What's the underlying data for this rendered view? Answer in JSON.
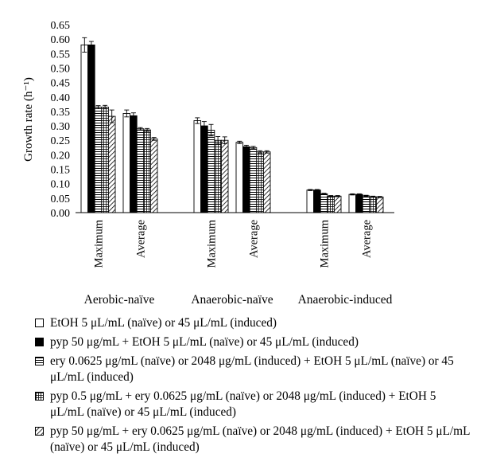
{
  "chart_data": {
    "type": "bar",
    "ylabel": "Growth rate (h⁻¹)",
    "ylim": [
      0,
      0.65
    ],
    "yticks": [
      "0.00",
      "0.05",
      "0.10",
      "0.15",
      "0.20",
      "0.25",
      "0.30",
      "0.35",
      "0.40",
      "0.45",
      "0.50",
      "0.55",
      "0.60",
      "0.65"
    ],
    "grid": false,
    "legend_position": "bottom",
    "groups": [
      {
        "name": "Aerobic-naïve",
        "categories": [
          {
            "label": "Maximum",
            "values": [
              0.58,
              0.58,
              0.365,
              0.365,
              0.333
            ],
            "errors": [
              0.025,
              0.012,
              0.005,
              0.006,
              0.022
            ]
          },
          {
            "label": "Average",
            "values": [
              0.343,
              0.335,
              0.29,
              0.286,
              0.255
            ],
            "errors": [
              0.012,
              0.01,
              0.004,
              0.005,
              0.005
            ]
          }
        ]
      },
      {
        "name": "Anaerobic-naïve",
        "categories": [
          {
            "label": "Maximum",
            "values": [
              0.318,
              0.3,
              0.285,
              0.25,
              0.25
            ],
            "errors": [
              0.01,
              0.015,
              0.02,
              0.013,
              0.012
            ]
          },
          {
            "label": "Average",
            "values": [
              0.243,
              0.228,
              0.225,
              0.21,
              0.21
            ],
            "errors": [
              0.004,
              0.005,
              0.004,
              0.004,
              0.004
            ]
          }
        ]
      },
      {
        "name": "Anaerobic-induced",
        "categories": [
          {
            "label": "Maximum",
            "values": [
              0.078,
              0.078,
              0.065,
              0.057,
              0.057
            ],
            "errors": [
              0.002,
              0.002,
              0.002,
              0.002,
              0.002
            ]
          },
          {
            "label": "Average",
            "values": [
              0.063,
              0.063,
              0.058,
              0.055,
              0.054
            ],
            "errors": [
              0.002,
              0.002,
              0.002,
              0.002,
              0.002
            ]
          }
        ]
      }
    ],
    "series": [
      {
        "fill": "white"
      },
      {
        "fill": "black"
      },
      {
        "fill": "horizontal-hatch"
      },
      {
        "fill": "grid-hatch"
      },
      {
        "fill": "diagonal-hatch"
      }
    ]
  },
  "legend": [
    {
      "text": "EtOH 5 μL/mL (naïve) or 45 μL/mL (induced)"
    },
    {
      "text": "pyp 50 μg/mL + EtOH 5 μL/mL (naïve) or 45 μL/mL (induced)"
    },
    {
      "text": "ery 0.0625 μg/mL (naïve) or 2048 μg/mL (induced) + EtOH 5 μL/mL (naïve) or 45 μL/mL (induced)"
    },
    {
      "text": "pyp 0.5 μg/mL + ery 0.0625 μg/mL (naïve) or 2048 μg/mL (induced) + EtOH 5 μL/mL (naïve) or 45 μL/mL (induced)"
    },
    {
      "text": "pyp 50 μg/mL + ery 0.0625 μg/mL (naïve) or 2048 μg/mL (induced) + EtOH 5 μL/mL (naïve) or 45 μL/mL (induced)"
    }
  ]
}
